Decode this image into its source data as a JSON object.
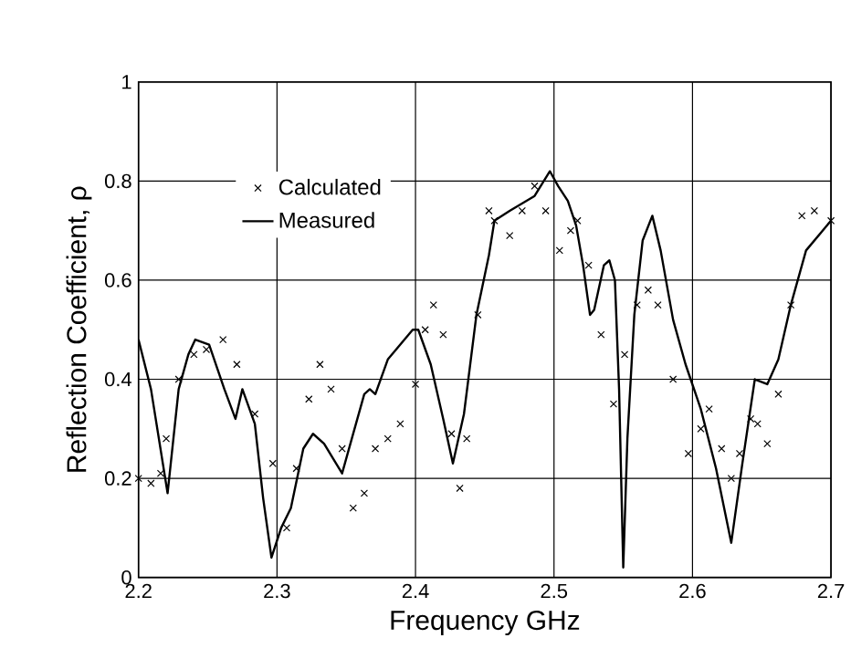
{
  "chart_data": {
    "type": "line",
    "xlabel": "Frequency GHz",
    "ylabel": "Reflection Coefficient,  ρ",
    "xlim": [
      2.2,
      2.7
    ],
    "ylim": [
      0,
      1
    ],
    "xticks": [
      2.2,
      2.3,
      2.4,
      2.5,
      2.6,
      2.7
    ],
    "yticks": [
      0,
      0.2,
      0.4,
      0.6,
      0.8,
      1
    ],
    "grid": true,
    "legend": "top left",
    "series": [
      {
        "name": "Calculated",
        "type": "scatter",
        "marker": "cross",
        "color": "#000000",
        "x": [
          2.2,
          2.209,
          2.216,
          2.22,
          2.229,
          2.24,
          2.249,
          2.261,
          2.271,
          2.284,
          2.297,
          2.307,
          2.314,
          2.323,
          2.331,
          2.339,
          2.347,
          2.355,
          2.363,
          2.371,
          2.38,
          2.389,
          2.4,
          2.407,
          2.413,
          2.42,
          2.426,
          2.432,
          2.437,
          2.445,
          2.453,
          2.457,
          2.468,
          2.477,
          2.486,
          2.494,
          2.504,
          2.512,
          2.517,
          2.525,
          2.534,
          2.543,
          2.551,
          2.56,
          2.568,
          2.575,
          2.586,
          2.597,
          2.606,
          2.612,
          2.621,
          2.628,
          2.634,
          2.642,
          2.647,
          2.654,
          2.662,
          2.671,
          2.679,
          2.688,
          2.7
        ],
        "values": [
          0.2,
          0.19,
          0.21,
          0.28,
          0.4,
          0.45,
          0.46,
          0.48,
          0.43,
          0.33,
          0.23,
          0.1,
          0.22,
          0.36,
          0.43,
          0.38,
          0.26,
          0.14,
          0.17,
          0.26,
          0.28,
          0.31,
          0.39,
          0.5,
          0.55,
          0.49,
          0.29,
          0.18,
          0.28,
          0.53,
          0.74,
          0.72,
          0.69,
          0.74,
          0.79,
          0.74,
          0.66,
          0.7,
          0.72,
          0.63,
          0.49,
          0.35,
          0.45,
          0.55,
          0.58,
          0.55,
          0.4,
          0.25,
          0.3,
          0.34,
          0.26,
          0.2,
          0.25,
          0.32,
          0.31,
          0.27,
          0.37,
          0.55,
          0.73,
          0.74,
          0.72
        ]
      },
      {
        "name": "Measured",
        "marker": "none",
        "line_style": "solid",
        "color": "#000000",
        "x": [
          2.2,
          2.209,
          2.221,
          2.229,
          2.236,
          2.241,
          2.251,
          2.262,
          2.27,
          2.275,
          2.284,
          2.29,
          2.296,
          2.303,
          2.31,
          2.319,
          2.326,
          2.334,
          2.347,
          2.354,
          2.363,
          2.367,
          2.371,
          2.38,
          2.398,
          2.402,
          2.411,
          2.42,
          2.427,
          2.435,
          2.444,
          2.453,
          2.457,
          2.468,
          2.486,
          2.497,
          2.503,
          2.51,
          2.516,
          2.521,
          2.526,
          2.529,
          2.536,
          2.54,
          2.544,
          2.547,
          2.55,
          2.553,
          2.558,
          2.564,
          2.571,
          2.577,
          2.586,
          2.595,
          2.606,
          2.617,
          2.628,
          2.636,
          2.645,
          2.654,
          2.662,
          2.671,
          2.682,
          2.7
        ],
        "values": [
          0.48,
          0.38,
          0.17,
          0.38,
          0.45,
          0.48,
          0.47,
          0.38,
          0.32,
          0.38,
          0.31,
          0.16,
          0.04,
          0.1,
          0.14,
          0.26,
          0.29,
          0.27,
          0.21,
          0.28,
          0.37,
          0.38,
          0.37,
          0.44,
          0.5,
          0.5,
          0.43,
          0.32,
          0.23,
          0.33,
          0.53,
          0.65,
          0.72,
          0.74,
          0.77,
          0.82,
          0.79,
          0.76,
          0.71,
          0.63,
          0.53,
          0.54,
          0.63,
          0.64,
          0.6,
          0.38,
          0.02,
          0.28,
          0.53,
          0.68,
          0.73,
          0.66,
          0.52,
          0.43,
          0.34,
          0.22,
          0.07,
          0.23,
          0.4,
          0.39,
          0.44,
          0.55,
          0.66,
          0.72
        ]
      }
    ]
  }
}
